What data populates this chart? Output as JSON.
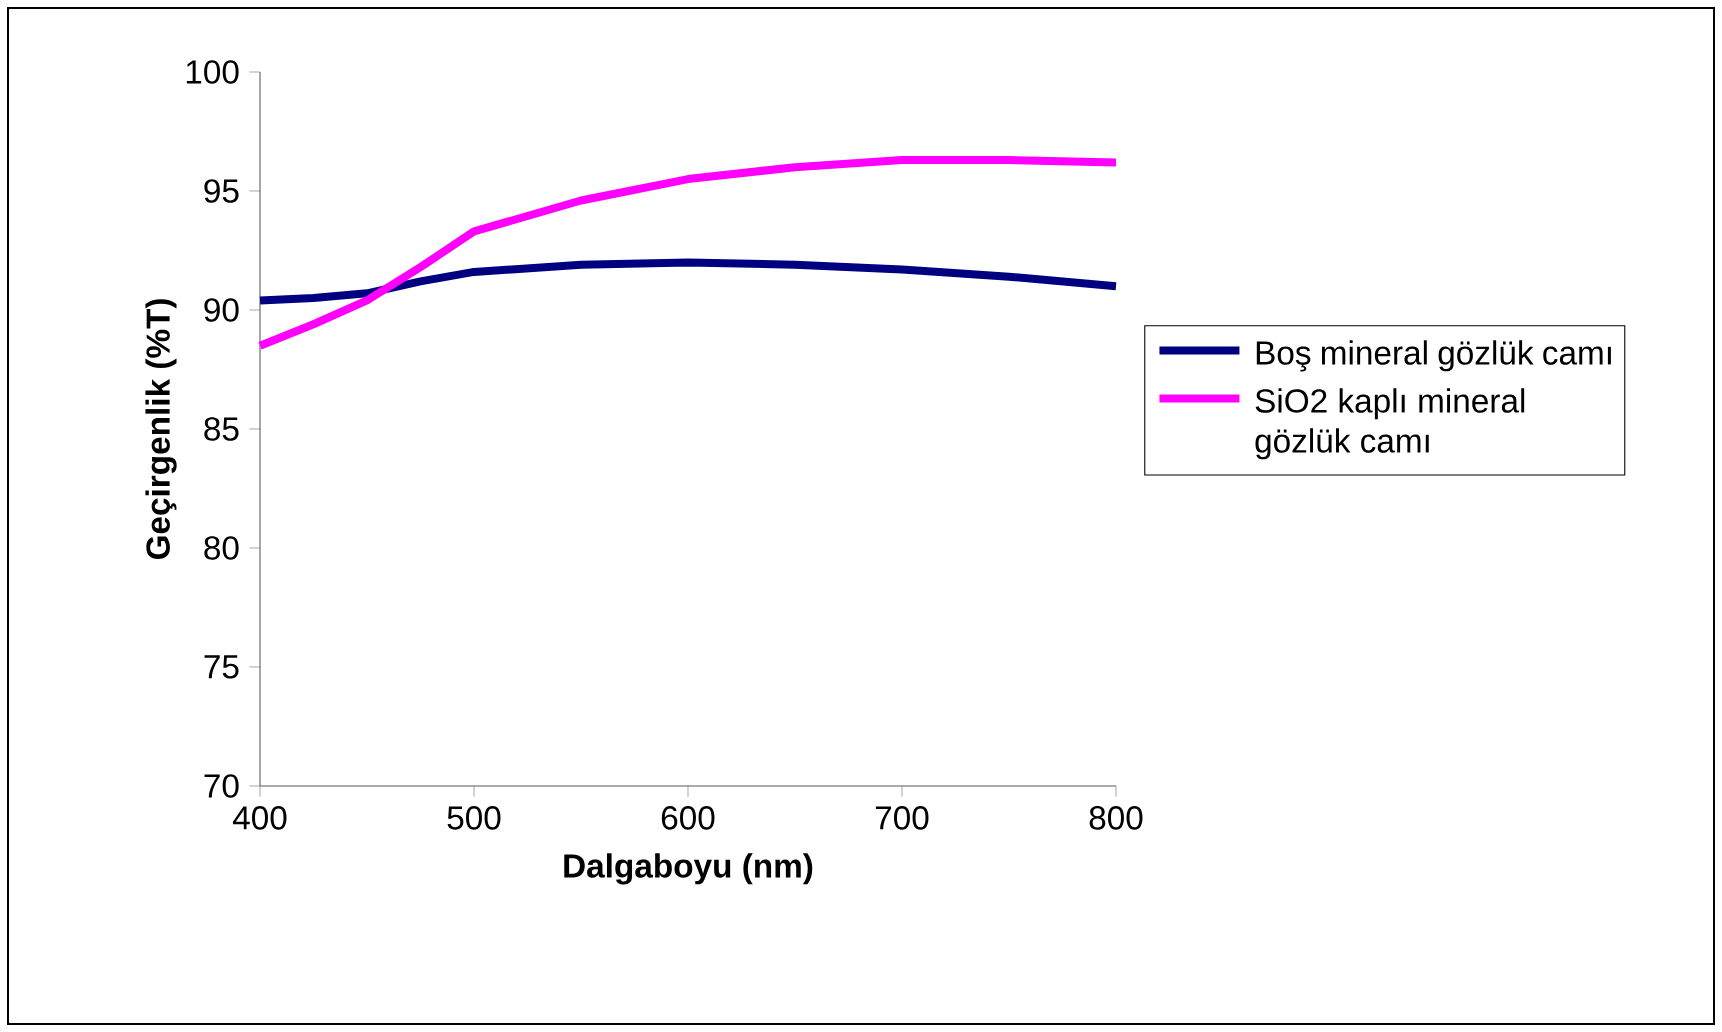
{
  "chart_data": {
    "type": "line",
    "xlabel": "Dalgaboyu (nm)",
    "ylabel": "Geçirgenlik (%T)",
    "x": [
      400,
      425,
      450,
      475,
      500,
      550,
      600,
      650,
      700,
      750,
      800
    ],
    "series": [
      {
        "name": "Boş mineral gözlük camı",
        "color": "#000080",
        "values": [
          90.4,
          90.5,
          90.7,
          91.2,
          91.6,
          91.9,
          92.0,
          91.9,
          91.7,
          91.4,
          91.0
        ]
      },
      {
        "name": "SiO2 kaplı mineral gözlük camı",
        "color": "#ff00ff",
        "values": [
          88.5,
          89.4,
          90.4,
          91.8,
          93.3,
          94.6,
          95.5,
          96.0,
          96.3,
          96.3,
          96.2
        ]
      }
    ],
    "xlim": [
      400,
      800
    ],
    "ylim": [
      70,
      100
    ],
    "xticks": [
      400,
      500,
      600,
      700,
      800
    ],
    "yticks": [
      70,
      75,
      80,
      85,
      90,
      95,
      100
    ],
    "legend": "right",
    "grid": false
  }
}
